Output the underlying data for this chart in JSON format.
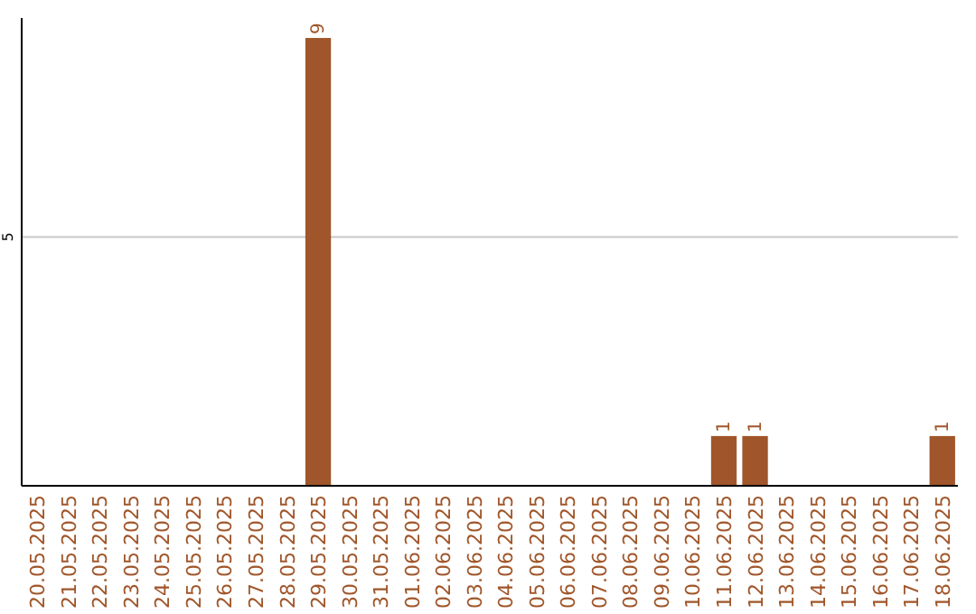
{
  "chart_data": {
    "type": "bar",
    "categories": [
      "20.05.2025",
      "21.05.2025",
      "22.05.2025",
      "23.05.2025",
      "24.05.2025",
      "25.05.2025",
      "26.05.2025",
      "27.05.2025",
      "28.05.2025",
      "29.05.2025",
      "30.05.2025",
      "31.05.2025",
      "01.06.2025",
      "02.06.2025",
      "03.06.2025",
      "04.06.2025",
      "05.06.2025",
      "06.06.2025",
      "07.06.2025",
      "08.06.2025",
      "09.06.2025",
      "10.06.2025",
      "11.06.2025",
      "12.06.2025",
      "13.06.2025",
      "14.06.2025",
      "15.06.2025",
      "16.06.2025",
      "17.06.2025",
      "18.06.2025"
    ],
    "values": [
      0,
      0,
      0,
      0,
      0,
      0,
      0,
      0,
      0,
      9,
      0,
      0,
      0,
      0,
      0,
      0,
      0,
      0,
      0,
      0,
      0,
      0,
      1,
      1,
      0,
      0,
      0,
      0,
      0,
      1
    ],
    "value_labels": [
      null,
      null,
      null,
      null,
      null,
      null,
      null,
      null,
      null,
      "9",
      null,
      null,
      null,
      null,
      null,
      null,
      null,
      null,
      null,
      null,
      null,
      null,
      "1",
      "1",
      null,
      null,
      null,
      null,
      null,
      "1"
    ],
    "color": "#a0562a",
    "ylim": [
      0,
      9.4
    ],
    "yticks": [
      5
    ],
    "grid": "y"
  }
}
